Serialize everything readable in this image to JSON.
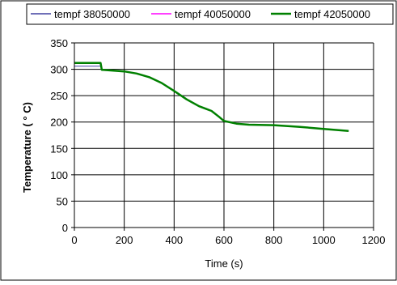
{
  "chart_data": {
    "type": "line",
    "title": "",
    "xlabel": "Time (s)",
    "ylabel": "Temperature ( ° C)",
    "xlim": [
      0,
      1200
    ],
    "ylim": [
      0,
      350
    ],
    "x_ticks": [
      0,
      200,
      400,
      600,
      800,
      1000,
      1200
    ],
    "y_ticks": [
      0,
      50,
      100,
      150,
      200,
      250,
      300,
      350
    ],
    "grid": true,
    "legend_position": "top",
    "series": [
      {
        "name": "tempf 38050000",
        "color": "#4040a0",
        "x": [
          0,
          105,
          110,
          200,
          250,
          300,
          350,
          400,
          450,
          500,
          550,
          580,
          600,
          650,
          700,
          800,
          900,
          1000,
          1100
        ],
        "y": [
          306,
          306,
          299,
          296,
          292,
          285,
          274,
          259,
          243,
          230,
          221,
          210,
          202,
          197,
          195,
          194,
          191,
          187,
          183
        ]
      },
      {
        "name": "tempf 40050000",
        "color": "#ff00ff",
        "x": [
          0,
          105,
          110,
          200,
          250,
          300,
          350,
          400,
          450,
          500,
          550,
          580,
          600,
          650,
          700,
          800,
          900,
          1000,
          1100
        ],
        "y": [
          311,
          311,
          299,
          296,
          292,
          285,
          274,
          259,
          243,
          230,
          221,
          210,
          202,
          197,
          195,
          194,
          191,
          187,
          183
        ]
      },
      {
        "name": "tempf 42050000",
        "color": "#008000",
        "x": [
          0,
          105,
          110,
          200,
          250,
          300,
          350,
          400,
          450,
          500,
          550,
          580,
          600,
          650,
          700,
          800,
          900,
          1000,
          1100
        ],
        "y": [
          312,
          312,
          299,
          296,
          292,
          285,
          274,
          259,
          243,
          230,
          221,
          210,
          202,
          197,
          195,
          194,
          191,
          187,
          183
        ]
      }
    ]
  }
}
